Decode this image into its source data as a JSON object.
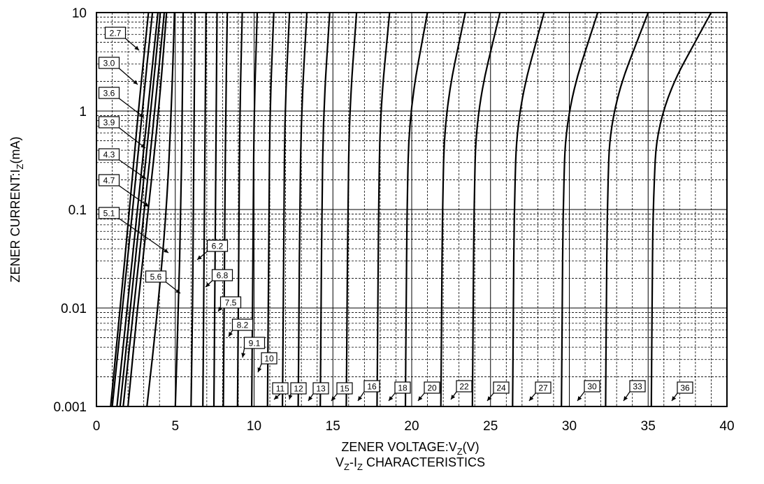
{
  "chart_data": {
    "type": "line",
    "title": "",
    "caption": {
      "main": "V",
      "sub1": "Z",
      "mid": "-I",
      "sub2": "Z",
      "rest": " CHARACTERISTICS"
    },
    "xlabel": {
      "main": "ZENER VOLTAGE:V",
      "sub": "Z",
      "rest": "(V)"
    },
    "ylabel": {
      "main": "ZENER CURRENT:I",
      "sub": "Z",
      "rest": "(mA)"
    },
    "x_scale": "linear",
    "y_scale": "log",
    "xlim": [
      0,
      40
    ],
    "ylim": [
      0.001,
      10
    ],
    "x_ticks": [
      "0",
      "5",
      "10",
      "15",
      "20",
      "25",
      "30",
      "35",
      "40"
    ],
    "y_ticks": [
      "0.001",
      "0.01",
      "0.1",
      "1",
      "10"
    ],
    "grid": true,
    "series": [
      {
        "name": "2.7",
        "points": [
          [
            0.9,
            0.001
          ],
          [
            1.5,
            0.01
          ],
          [
            2.1,
            0.1
          ],
          [
            2.65,
            1
          ],
          [
            3.3,
            10
          ]
        ]
      },
      {
        "name": "3.0",
        "points": [
          [
            1.0,
            0.001
          ],
          [
            1.65,
            0.01
          ],
          [
            2.3,
            0.1
          ],
          [
            2.9,
            1
          ],
          [
            3.55,
            10
          ]
        ]
      },
      {
        "name": "3.6",
        "points": [
          [
            1.3,
            0.001
          ],
          [
            1.95,
            0.01
          ],
          [
            2.6,
            0.1
          ],
          [
            3.25,
            1
          ],
          [
            3.9,
            10
          ]
        ]
      },
      {
        "name": "3.9",
        "points": [
          [
            1.5,
            0.001
          ],
          [
            2.15,
            0.01
          ],
          [
            2.8,
            0.1
          ],
          [
            3.45,
            1
          ],
          [
            4.05,
            10
          ]
        ]
      },
      {
        "name": "4.3",
        "points": [
          [
            1.7,
            0.001
          ],
          [
            2.35,
            0.01
          ],
          [
            3.05,
            0.1
          ],
          [
            3.7,
            1
          ],
          [
            4.3,
            10
          ]
        ]
      },
      {
        "name": "4.7",
        "points": [
          [
            2.0,
            0.001
          ],
          [
            2.6,
            0.01
          ],
          [
            3.3,
            0.1
          ],
          [
            3.95,
            1
          ],
          [
            4.45,
            10
          ]
        ]
      },
      {
        "name": "5.1",
        "points": [
          [
            3.2,
            0.001
          ],
          [
            3.9,
            0.01
          ],
          [
            4.45,
            0.1
          ],
          [
            4.75,
            1
          ],
          [
            4.95,
            10
          ]
        ]
      },
      {
        "name": "5.6",
        "points": [
          [
            5.0,
            0.001
          ],
          [
            5.2,
            0.01
          ],
          [
            5.35,
            0.1
          ],
          [
            5.45,
            1
          ],
          [
            5.5,
            10
          ]
        ]
      },
      {
        "name": "6.2",
        "points": [
          [
            6.0,
            0.001
          ],
          [
            6.1,
            0.01
          ],
          [
            6.15,
            0.1
          ],
          [
            6.2,
            1
          ],
          [
            6.25,
            10
          ]
        ]
      },
      {
        "name": "6.8",
        "points": [
          [
            6.75,
            0.001
          ],
          [
            6.8,
            0.01
          ],
          [
            6.85,
            0.1
          ],
          [
            6.9,
            1
          ],
          [
            6.95,
            10
          ]
        ]
      },
      {
        "name": "7.5",
        "points": [
          [
            7.45,
            0.001
          ],
          [
            7.5,
            0.01
          ],
          [
            7.55,
            0.1
          ],
          [
            7.6,
            1
          ],
          [
            7.65,
            10
          ]
        ]
      },
      {
        "name": "8.2",
        "points": [
          [
            8.05,
            0.001
          ],
          [
            8.1,
            0.01
          ],
          [
            8.15,
            0.1
          ],
          [
            8.2,
            1
          ],
          [
            8.3,
            10
          ]
        ]
      },
      {
        "name": "9.1",
        "points": [
          [
            8.95,
            0.001
          ],
          [
            9.0,
            0.01
          ],
          [
            9.05,
            0.1
          ],
          [
            9.1,
            1
          ],
          [
            9.25,
            10
          ]
        ]
      },
      {
        "name": "10",
        "points": [
          [
            9.85,
            0.001
          ],
          [
            9.9,
            0.01
          ],
          [
            9.95,
            0.1
          ],
          [
            10.0,
            1
          ],
          [
            10.2,
            10
          ]
        ]
      },
      {
        "name": "11",
        "points": [
          [
            10.85,
            0.001
          ],
          [
            10.9,
            0.01
          ],
          [
            10.95,
            0.1
          ],
          [
            11.0,
            1
          ],
          [
            11.25,
            10
          ]
        ]
      },
      {
        "name": "12",
        "points": [
          [
            11.8,
            0.001
          ],
          [
            11.85,
            0.01
          ],
          [
            11.9,
            0.1
          ],
          [
            11.95,
            1
          ],
          [
            12.25,
            10
          ]
        ]
      },
      {
        "name": "13",
        "points": [
          [
            12.8,
            0.001
          ],
          [
            12.85,
            0.01
          ],
          [
            12.9,
            0.1
          ],
          [
            13.0,
            1
          ],
          [
            13.35,
            10
          ]
        ]
      },
      {
        "name": "15",
        "points": [
          [
            14.2,
            0.001
          ],
          [
            14.25,
            0.01
          ],
          [
            14.3,
            0.1
          ],
          [
            14.4,
            1
          ],
          [
            14.8,
            10
          ]
        ]
      },
      {
        "name": "16",
        "points": [
          [
            15.85,
            0.001
          ],
          [
            15.9,
            0.01
          ],
          [
            15.95,
            0.1
          ],
          [
            16.05,
            1
          ],
          [
            16.5,
            10
          ]
        ]
      },
      {
        "name": "18",
        "points": [
          [
            17.8,
            0.001
          ],
          [
            17.85,
            0.01
          ],
          [
            17.9,
            0.1
          ],
          [
            18.0,
            1
          ],
          [
            18.6,
            10
          ]
        ]
      },
      {
        "name": "20",
        "points": [
          [
            19.6,
            0.001
          ],
          [
            19.65,
            0.01
          ],
          [
            19.7,
            0.1
          ],
          [
            19.85,
            1
          ],
          [
            21.0,
            10
          ]
        ]
      },
      {
        "name": "22",
        "points": [
          [
            21.85,
            0.001
          ],
          [
            21.9,
            0.01
          ],
          [
            21.95,
            0.1
          ],
          [
            22.1,
            1
          ],
          [
            23.4,
            10
          ]
        ]
      },
      {
        "name": "24",
        "points": [
          [
            23.85,
            0.001
          ],
          [
            23.9,
            0.01
          ],
          [
            23.95,
            0.1
          ],
          [
            24.1,
            1
          ],
          [
            25.6,
            10
          ]
        ]
      },
      {
        "name": "27",
        "points": [
          [
            26.4,
            0.001
          ],
          [
            26.45,
            0.01
          ],
          [
            26.5,
            0.1
          ],
          [
            26.7,
            1
          ],
          [
            28.4,
            10
          ]
        ]
      },
      {
        "name": "30",
        "points": [
          [
            29.5,
            0.001
          ],
          [
            29.55,
            0.01
          ],
          [
            29.6,
            0.1
          ],
          [
            29.8,
            1
          ],
          [
            31.8,
            10
          ]
        ]
      },
      {
        "name": "33",
        "points": [
          [
            32.3,
            0.001
          ],
          [
            32.35,
            0.01
          ],
          [
            32.4,
            0.1
          ],
          [
            32.6,
            1
          ],
          [
            35.0,
            10
          ]
        ]
      },
      {
        "name": "36",
        "points": [
          [
            35.2,
            0.001
          ],
          [
            35.25,
            0.01
          ],
          [
            35.3,
            0.1
          ],
          [
            35.6,
            1
          ],
          [
            39.0,
            10
          ]
        ]
      }
    ]
  }
}
